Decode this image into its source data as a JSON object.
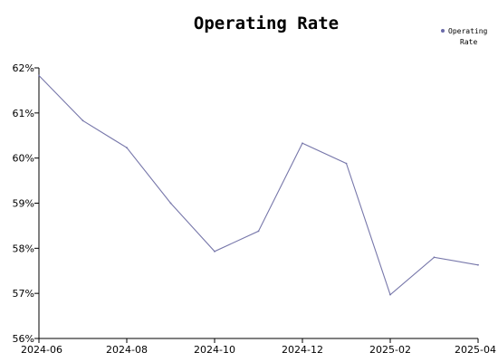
{
  "chart_data": {
    "type": "line",
    "title": "Operating Rate",
    "xlabel": "",
    "ylabel": "",
    "x": [
      "2024-06",
      "2024-07",
      "2024-08",
      "2024-09",
      "2024-10",
      "2024-11",
      "2024-12",
      "2025-01",
      "2025-02",
      "2025-03",
      "2025-04"
    ],
    "x_tick_labels": [
      "2024-06",
      "2024-08",
      "2024-10",
      "2024-12",
      "2025-02",
      "2025-04"
    ],
    "series": [
      {
        "name": "Operating Rate",
        "values": [
          61.83,
          60.83,
          60.23,
          59.0,
          57.93,
          58.38,
          60.33,
          59.88,
          56.97,
          57.8,
          57.63
        ]
      }
    ],
    "ylim": [
      56,
      62
    ],
    "y_ticks": [
      56,
      57,
      58,
      59,
      60,
      61,
      62
    ],
    "y_tick_suffix": "%",
    "legend": {
      "position": "top-right",
      "label_lines": [
        "Operating",
        "Rate"
      ]
    },
    "colors": {
      "line": "#7777aa",
      "marker": "#6a6aa8",
      "axis": "#000000"
    },
    "grid": false
  }
}
